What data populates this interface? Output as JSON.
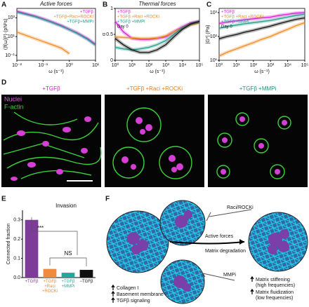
{
  "panel_labels": [
    "A",
    "B",
    "C",
    "D",
    "E",
    "F"
  ],
  "chart_data": [
    {
      "type": "line",
      "title": "Active forces",
      "y_label": "⟨|f(ω)|²⟩ (pN²s)",
      "x_label": "ω (s⁻¹)",
      "xscale": "log",
      "yscale": "log",
      "legend": "top-right",
      "x": [
        0.01,
        0.02,
        0.05,
        0.1,
        0.2,
        0.5,
        1,
        2,
        5,
        10
      ],
      "xlim": [
        0.01,
        10
      ],
      "xticks": [
        {
          "value": 0.01,
          "label": "10⁻²"
        },
        {
          "value": 0.1,
          "label": "10⁻¹"
        },
        {
          "value": 1,
          "label": "10⁰"
        },
        {
          "value": 10,
          "label": "10¹"
        }
      ],
      "ylim": [
        0.03,
        10000
      ],
      "yticks": [
        {
          "value": 0.1,
          "label": "10⁻¹"
        },
        {
          "value": 10,
          "label": "10¹"
        },
        {
          "value": 1000,
          "label": "10³"
        }
      ],
      "series": [
        {
          "name": "+TGFβ",
          "color": "#d61fd6",
          "values": [
            5000,
            3000,
            1500,
            800,
            400,
            150,
            60,
            25,
            6,
            1.5
          ]
        },
        {
          "name": "+TGFβ+Raci+ROCKi",
          "color": "#f08a24",
          "values": [
            30,
            15,
            6,
            3,
            1.5,
            0.6,
            0.15,
            null,
            null,
            null
          ]
        },
        {
          "name": "+TGFβ+MMPi",
          "color": "#2a9d8f",
          "values": [
            4000,
            2500,
            1300,
            700,
            350,
            130,
            55,
            22,
            5,
            1.2
          ]
        }
      ]
    },
    {
      "type": "line",
      "title": "Thermal forces",
      "y_label": "α",
      "x_label": "ω (s⁻¹)",
      "xscale": "log",
      "yscale": "linear",
      "legend": "top-left",
      "x": [
        1,
        3,
        10,
        30,
        100,
        300,
        1000,
        3000,
        10000,
        30000,
        100000
      ],
      "xlim": [
        1,
        100000
      ],
      "xticks": [
        {
          "value": 1,
          "label": "10⁰"
        },
        {
          "value": 10,
          "label": "10¹"
        },
        {
          "value": 100,
          "label": "10²"
        },
        {
          "value": 1000,
          "label": "10³"
        },
        {
          "value": 10000,
          "label": "10⁴"
        },
        {
          "value": 100000,
          "label": "10⁵"
        }
      ],
      "ylim": [
        0,
        1
      ],
      "yticks": [
        0,
        0.5,
        1
      ],
      "series": [
        {
          "name": "+TGFβ",
          "color": "#d61fd6",
          "values": [
            0.75,
            0.55,
            0.42,
            0.4,
            0.4,
            0.42,
            0.45,
            0.55,
            0.65,
            0.72,
            0.75
          ]
        },
        {
          "name": "+TGFβ +Raci +ROCKi",
          "color": "#f08a24",
          "values": [
            0.45,
            0.44,
            0.43,
            0.42,
            0.42,
            0.43,
            0.47,
            0.55,
            0.62,
            0.68,
            0.72
          ]
        },
        {
          "name": "+TGFβ +MMPi",
          "color": "#2a9d8f",
          "values": [
            0.25,
            0.22,
            0.2,
            0.22,
            0.25,
            0.3,
            0.38,
            0.5,
            0.62,
            0.7,
            0.74
          ]
        },
        {
          "name": "Day 0",
          "color": "#111111",
          "values": [
            0.42,
            0.3,
            0.2,
            0.15,
            0.15,
            0.2,
            0.3,
            0.45,
            0.6,
            0.7,
            0.75
          ]
        }
      ]
    },
    {
      "type": "line",
      "y_label": "|G*| (Pa)",
      "x_label": "ω (s⁻¹)",
      "xscale": "log",
      "yscale": "log",
      "legend": "top-left",
      "x": [
        1,
        3,
        10,
        30,
        100,
        300,
        1000,
        3000,
        10000,
        30000,
        100000
      ],
      "xlim": [
        1,
        100000
      ],
      "xticks": [
        {
          "value": 1,
          "label": "10⁰"
        },
        {
          "value": 10,
          "label": "10¹"
        },
        {
          "value": 100,
          "label": "10²"
        },
        {
          "value": 1000,
          "label": "10³"
        },
        {
          "value": 10000,
          "label": "10⁴"
        },
        {
          "value": 100000,
          "label": "10⁵"
        }
      ],
      "ylim": [
        10,
        1500
      ],
      "yticks": [
        {
          "value": 10,
          "label": "10¹"
        },
        {
          "value": 100,
          "label": "10²"
        },
        {
          "value": 1000,
          "label": "10³"
        }
      ],
      "series": [
        {
          "name": "+TGFβ",
          "color": "#d61fd6",
          "values": [
            350,
            400,
            450,
            500,
            550,
            600,
            650,
            750,
            850,
            950,
            1000
          ]
        },
        {
          "name": "+TGFβ +Raci +ROCKi",
          "color": "#f08a24",
          "values": [
            15,
            22,
            30,
            40,
            55,
            75,
            100,
            140,
            200,
            280,
            380
          ]
        },
        {
          "name": "+TGFβ +MMPi",
          "color": "#2a9d8f",
          "values": [
            220,
            260,
            300,
            340,
            380,
            420,
            470,
            550,
            650,
            750,
            850
          ]
        },
        {
          "name": "Day 0",
          "color": "#111111",
          "values": [
            80,
            100,
            120,
            150,
            180,
            220,
            270,
            340,
            430,
            520,
            600
          ]
        }
      ]
    },
    {
      "type": "bar",
      "title": "Invasion",
      "y_label": "Connected fraction",
      "categories": [
        "+TGFβ",
        "+TGFβ +Raci +ROCKi",
        "+TGFβ +MMPi",
        "−TGFβ"
      ],
      "values": [
        0.3,
        0.045,
        0.025,
        0.04
      ],
      "colors": [
        "#7d3c98",
        "#f08a3c",
        "#26a69a",
        "#111111"
      ],
      "ylim": [
        0,
        0.35
      ],
      "yticks": [
        {
          "value": 0,
          "label": "0.0"
        },
        {
          "value": 0.1,
          "label": "0.1"
        },
        {
          "value": 0.2,
          "label": "0.2"
        },
        {
          "value": 0.3,
          "label": "0.3"
        }
      ],
      "annotations": [
        "***",
        "NS"
      ]
    }
  ],
  "microscopy": {
    "labels": [
      "+TGFβ",
      "+TGFβ +Raci +ROCKi",
      "+TGFβ +MMPi"
    ],
    "channels": [
      "Nuclei",
      "F-actin"
    ]
  },
  "diagram": {
    "inhibitors": [
      "Raci/ROCKi",
      "MMPi"
    ],
    "processes": [
      "Active forces",
      "Matrix degradation"
    ],
    "left_list": [
      "Collagen I",
      "Basement membrane",
      "TGFβ signaling"
    ],
    "right_list": [
      "Matrix stiffening",
      "(high frequencies)",
      "Matrix fluidization",
      "(low frequencies)"
    ]
  }
}
